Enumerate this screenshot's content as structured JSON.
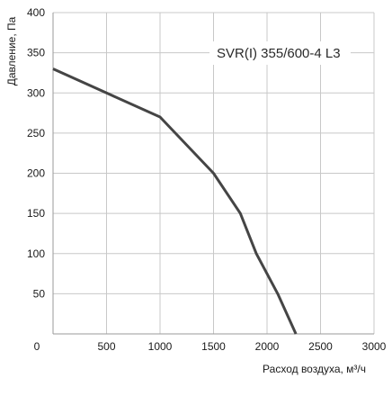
{
  "chart_data": {
    "type": "line",
    "model_label": "SVR(I) 355/600-4 L3",
    "xlabel": "Расход воздуха, м³/ч",
    "ylabel": "Давление, Па",
    "xlim": [
      0,
      3000
    ],
    "ylim": [
      0,
      400
    ],
    "x_ticks": [
      0,
      500,
      1000,
      1500,
      2000,
      2500,
      3000
    ],
    "y_ticks": [
      50,
      100,
      150,
      200,
      250,
      300,
      350,
      400
    ],
    "grid": true,
    "series": [
      {
        "color": "#454545",
        "x": [
          0,
          500,
          1000,
          1500,
          1750,
          1900,
          2100,
          2270
        ],
        "y": [
          330,
          300,
          270,
          200,
          150,
          100,
          50,
          0
        ]
      }
    ]
  }
}
